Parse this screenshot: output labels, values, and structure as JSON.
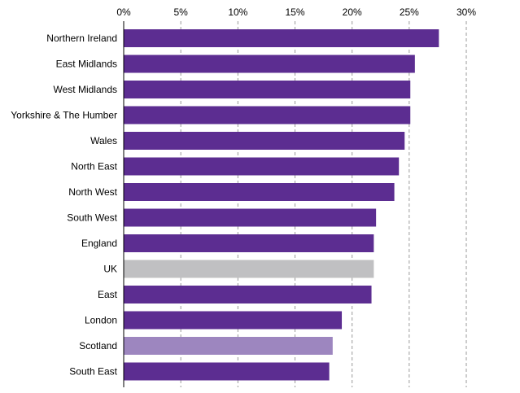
{
  "chart_data": {
    "type": "bar",
    "orientation": "horizontal",
    "title": "",
    "xlabel": "",
    "ylabel": "",
    "xlim": [
      0,
      30
    ],
    "x_tick_values": [
      0,
      5,
      10,
      15,
      20,
      25,
      30
    ],
    "x_tick_labels": [
      "0%",
      "5%",
      "10%",
      "15%",
      "20%",
      "25%",
      "30%"
    ],
    "x_axis_position": "top",
    "grid": "vertical dashed",
    "legend": "none",
    "categories": [
      "Northern Ireland",
      "East Midlands",
      "West Midlands",
      "Yorkshire & The Humber",
      "Wales",
      "North East",
      "North West",
      "South West",
      "England",
      "UK",
      "East",
      "London",
      "Scotland",
      "South East"
    ],
    "values": [
      27.6,
      25.5,
      25.1,
      25.1,
      24.6,
      24.1,
      23.7,
      22.1,
      21.9,
      21.9,
      21.7,
      19.1,
      18.3,
      18.0
    ],
    "colors": [
      "#5c2d91",
      "#5c2d91",
      "#5c2d91",
      "#5c2d91",
      "#5c2d91",
      "#5c2d91",
      "#5c2d91",
      "#5c2d91",
      "#5c2d91",
      "#c0c0c2",
      "#5c2d91",
      "#5c2d91",
      "#9d86bf",
      "#5c2d91"
    ],
    "color_roles": {
      "region": "#5c2d91",
      "uk_total": "#c0c0c2",
      "highlight": "#9d86bf"
    }
  }
}
